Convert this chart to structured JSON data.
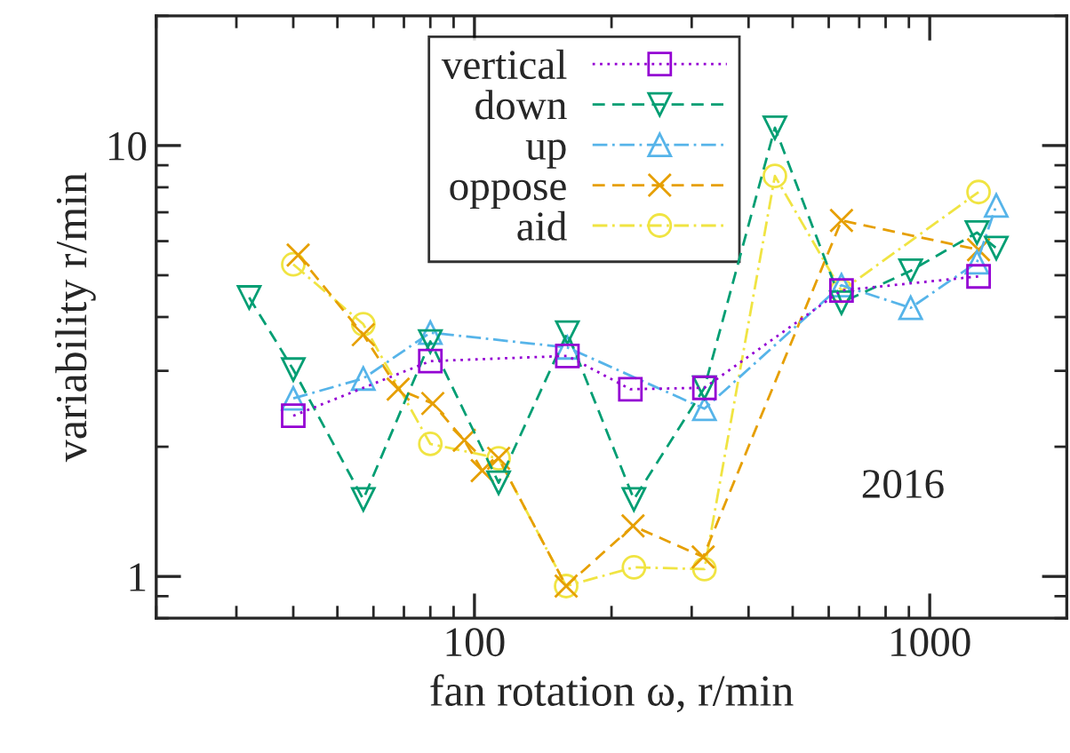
{
  "chart_data": {
    "type": "line",
    "xlabel": "fan rotation ω, r/min",
    "ylabel": "variability r/min",
    "log": "xy",
    "xlim": [
      20,
      2000
    ],
    "ylim": [
      0.8,
      20
    ],
    "xticks": [
      100,
      1000
    ],
    "yticks": [
      1,
      10
    ],
    "grid": false,
    "legend": "top",
    "annotations": [
      "2016"
    ],
    "series": [
      {
        "name": "vertical",
        "color": "#9400d3",
        "marker": "square",
        "line_style": "dotted",
        "x": [
          40,
          80,
          160,
          220,
          320,
          640,
          1280
        ],
        "values": [
          2.36,
          3.16,
          3.25,
          2.72,
          2.74,
          4.61,
          4.97
        ]
      },
      {
        "name": "down",
        "color": "#009e73",
        "marker": "triangle_down",
        "line_style": "dashed",
        "x": [
          32,
          40,
          57,
          80,
          113,
          160,
          224,
          320,
          457,
          640,
          908,
          1270,
          1400
        ],
        "values": [
          4.44,
          3.02,
          1.51,
          3.51,
          1.65,
          3.68,
          1.51,
          2.74,
          11.0,
          4.32,
          5.12,
          6.28,
          5.78
        ]
      },
      {
        "name": "up",
        "color": "#56b4e9",
        "marker": "triangle",
        "line_style": "dashdot",
        "x": [
          40,
          57,
          80,
          160,
          320,
          640,
          908,
          1270,
          1400
        ],
        "values": [
          2.59,
          2.88,
          3.68,
          3.4,
          2.45,
          4.74,
          4.2,
          5.36,
          7.26
        ]
      },
      {
        "name": "oppose",
        "color": "#e69f00",
        "marker": "cross",
        "line_style": "dashed",
        "x": [
          41,
          57,
          68,
          81,
          95,
          104,
          113,
          159,
          223,
          318,
          640,
          1280
        ],
        "values": [
          5.57,
          3.64,
          2.72,
          2.52,
          2.07,
          1.76,
          1.88,
          0.95,
          1.31,
          1.11,
          6.7,
          5.73
        ]
      },
      {
        "name": "aid",
        "color": "#f0e442",
        "marker": "circle",
        "line_style": "dashdot",
        "x": [
          40,
          57,
          80,
          113,
          159,
          224,
          320,
          457,
          640,
          1280
        ],
        "values": [
          5.3,
          3.85,
          2.03,
          1.88,
          0.95,
          1.05,
          1.04,
          8.5,
          4.6,
          7.8
        ]
      }
    ]
  }
}
